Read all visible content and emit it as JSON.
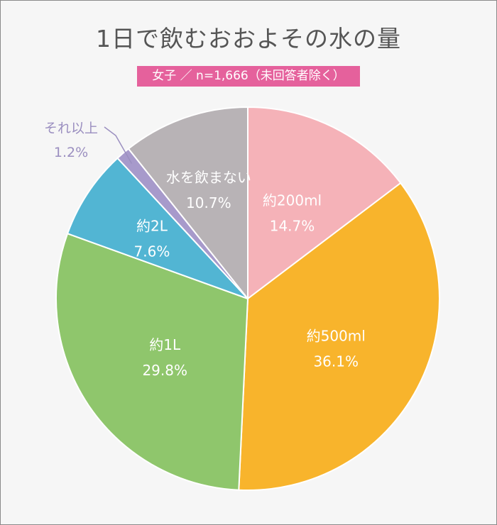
{
  "chart_data": {
    "type": "pie",
    "title": "1日で飲むおおよその水の量",
    "subtitle": "女子 ／ n=1,666（未回答者除く）",
    "slices": [
      {
        "label": "約200ml",
        "percent_text": "14.7%",
        "value": 14.7,
        "color": "#f5b2b8"
      },
      {
        "label": "約500ml",
        "percent_text": "36.1%",
        "value": 36.1,
        "color": "#f8b42c"
      },
      {
        "label": "約1L",
        "percent_text": "29.8%",
        "value": 29.8,
        "color": "#8fc66c"
      },
      {
        "label": "約2L",
        "percent_text": "7.6%",
        "value": 7.6,
        "color": "#52b5d3"
      },
      {
        "label": "それ以上",
        "percent_text": "1.2%",
        "value": 1.2,
        "color": "#a79acb"
      },
      {
        "label": "水を飲まない",
        "percent_text": "10.7%",
        "value": 10.7,
        "color": "#b8b3b6"
      }
    ]
  }
}
